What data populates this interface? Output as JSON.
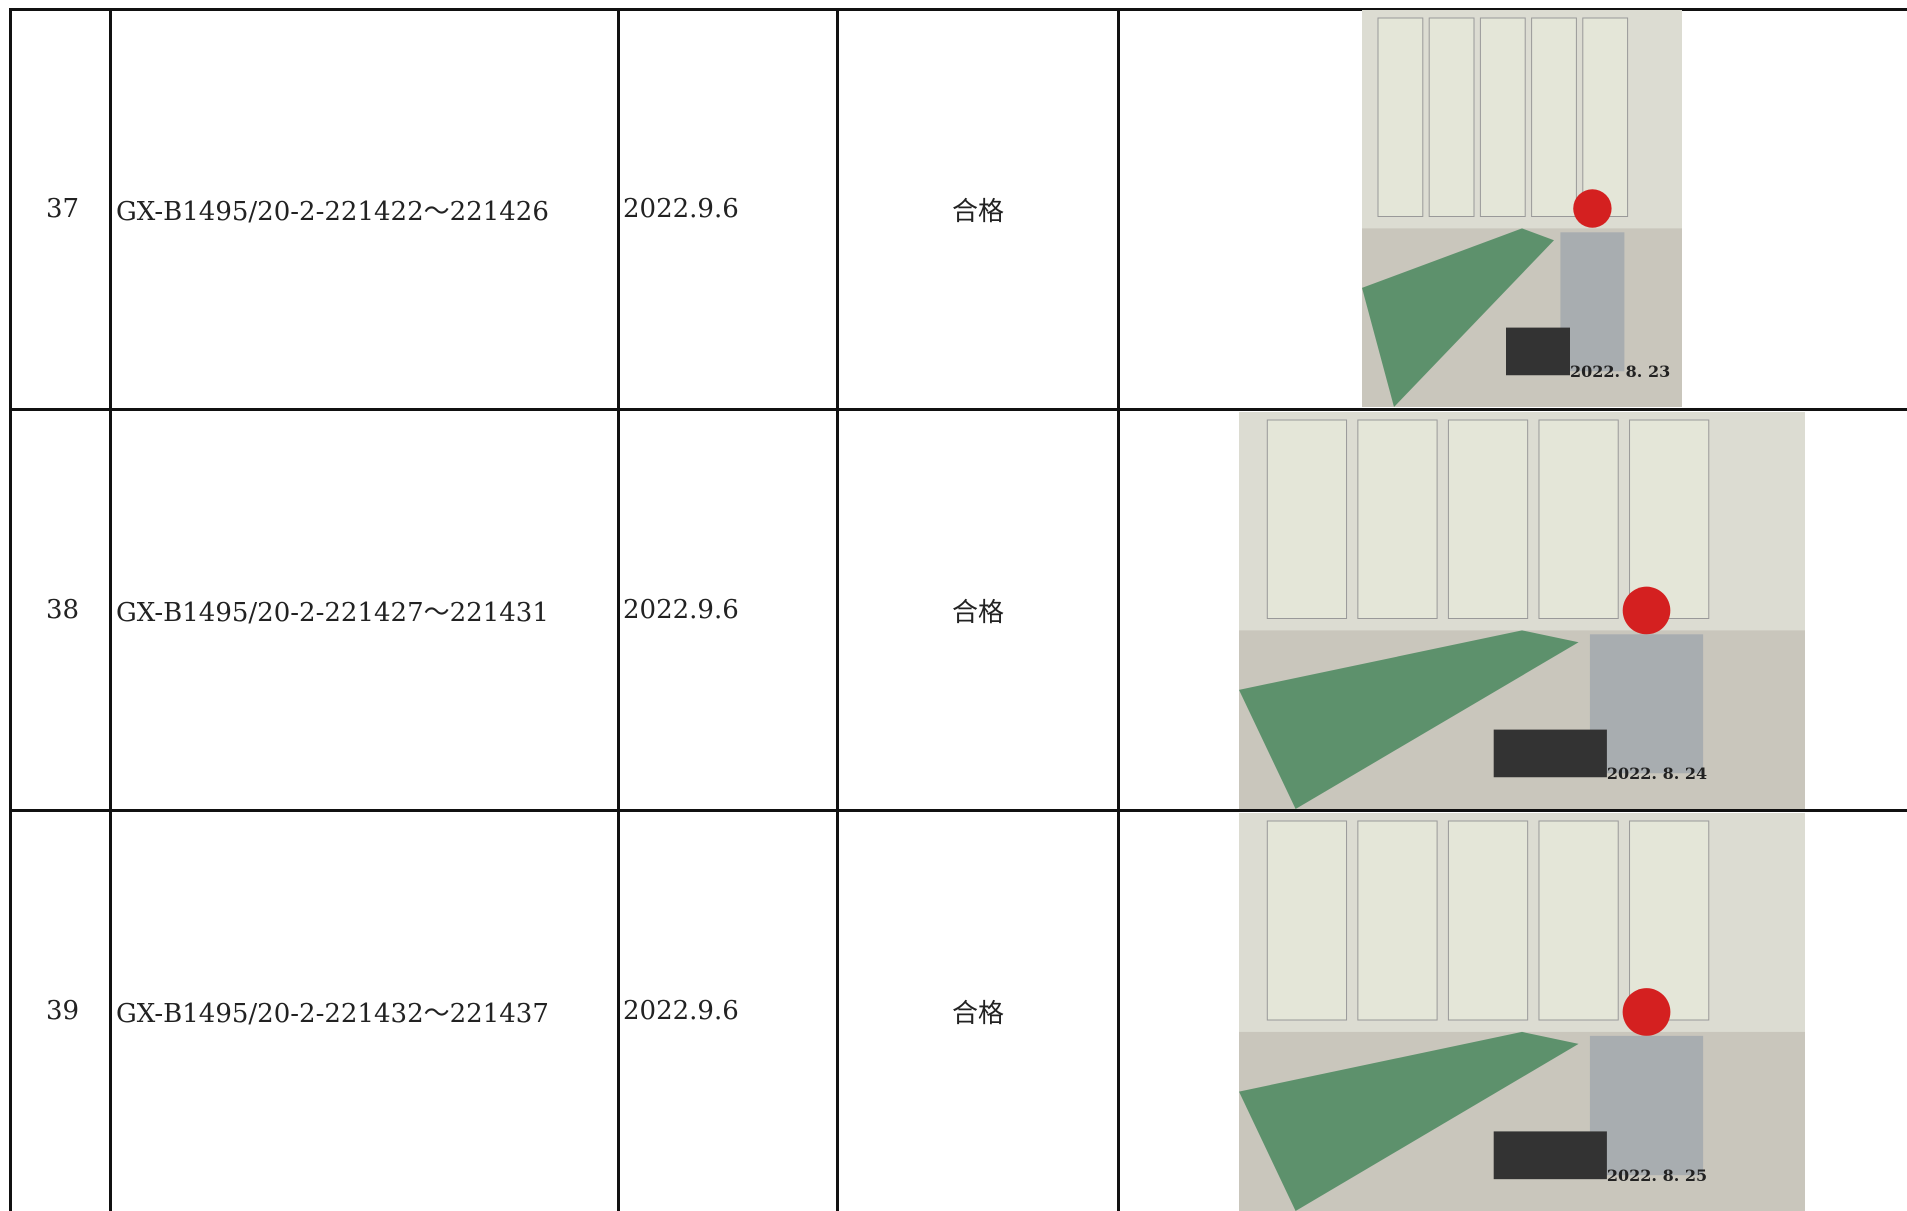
{
  "table": {
    "rows": [
      {
        "no": "37",
        "model": "GX-B1495/20-2-221422～221426",
        "date": "2022.9.6",
        "result": "合格",
        "photo_stamp": "2022. 8. 23"
      },
      {
        "no": "38",
        "model": "GX-B1495/20-2-221427～221431",
        "date": "2022.9.6",
        "result": "合格",
        "photo_stamp": "2022. 8. 24"
      },
      {
        "no": "39",
        "model": "GX-B1495/20-2-221432～221437",
        "date": "2022.9.6",
        "result": "合格",
        "photo_stamp": "2022. 8. 25"
      }
    ]
  }
}
